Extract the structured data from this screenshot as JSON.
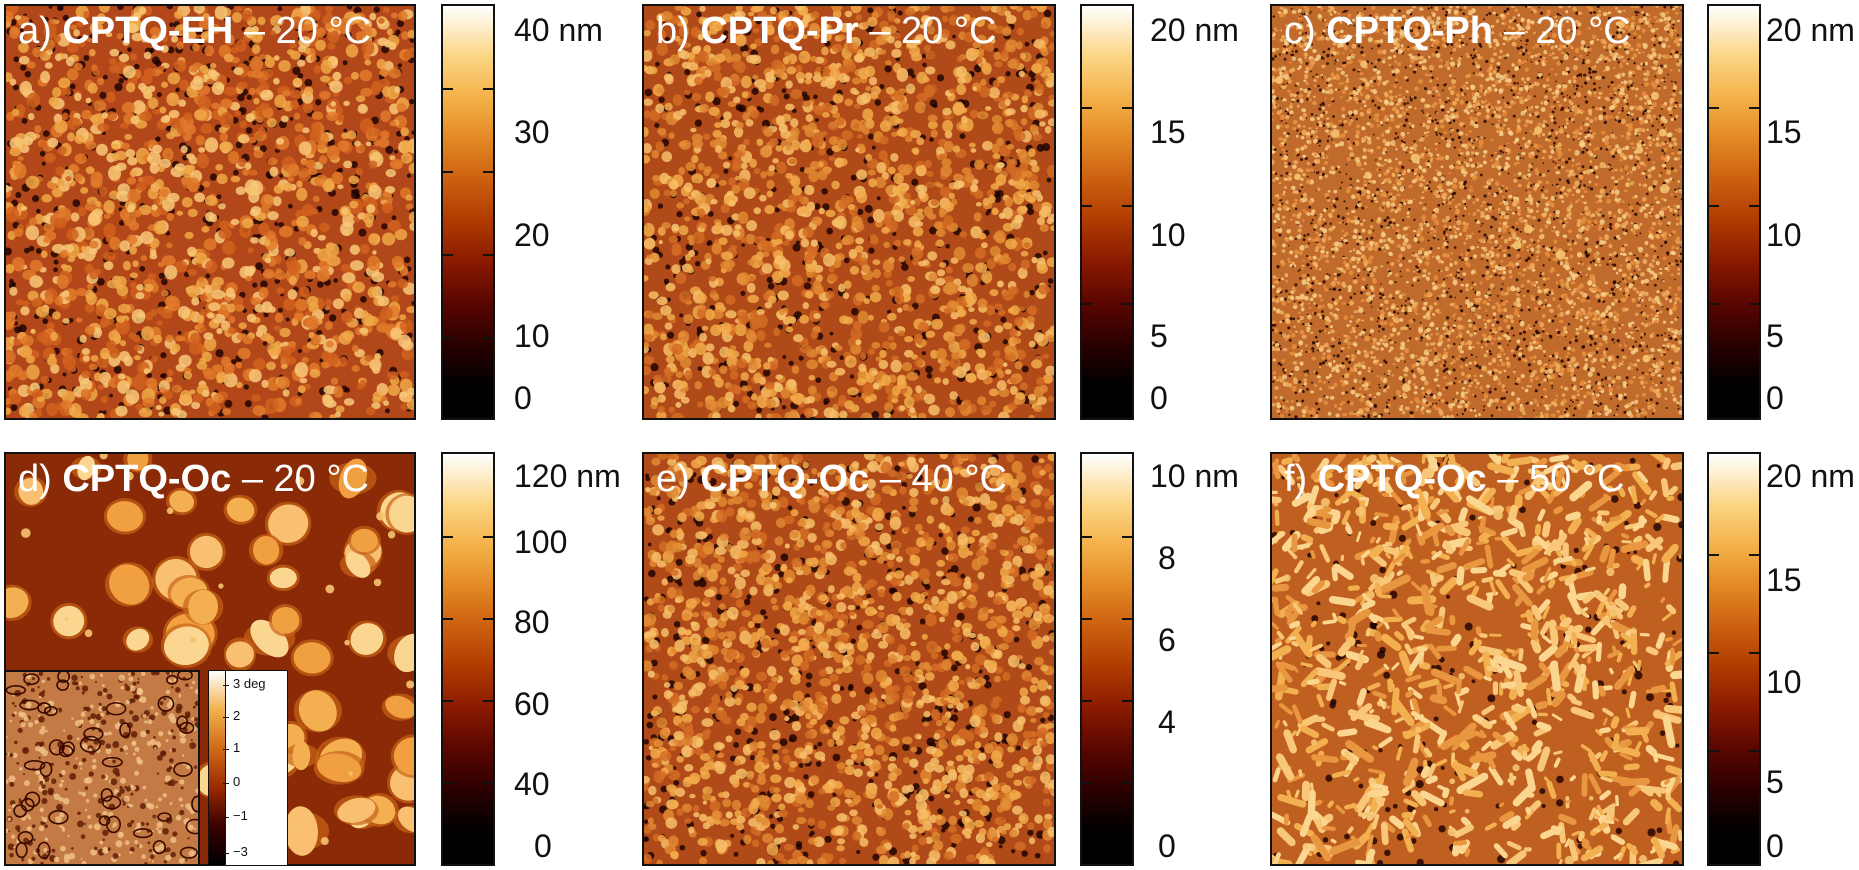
{
  "panels": [
    {
      "id": "a",
      "label": "a)",
      "compound": "CPTQ-EH",
      "temp": "– 20 °C",
      "texture": "fine-blobs",
      "colorbar": {
        "labels": [
          "40 nm",
          "30",
          "20",
          "10",
          "0"
        ]
      }
    },
    {
      "id": "b",
      "label": "b)",
      "compound": "CPTQ-Pr",
      "temp": "– 20 °C",
      "texture": "grains",
      "colorbar": {
        "labels": [
          "20 nm",
          "15",
          "10",
          "5",
          "0"
        ]
      }
    },
    {
      "id": "c",
      "label": "c)",
      "compound": "CPTQ-Ph",
      "temp": "– 20 °C",
      "texture": "very-fine",
      "colorbar": {
        "labels": [
          "20 nm",
          "15",
          "10",
          "5",
          "0"
        ]
      }
    },
    {
      "id": "d",
      "label": "d)",
      "compound": "CPTQ-Oc",
      "temp": "– 20 °C",
      "texture": "large-crystals",
      "colorbar": {
        "labels": [
          "120 nm",
          "100",
          "80",
          "60",
          "40",
          "0"
        ]
      }
    },
    {
      "id": "e",
      "label": "e)",
      "compound": "CPTQ-Oc",
      "temp": "– 40 °C",
      "texture": "grains",
      "colorbar": {
        "labels": [
          "10 nm",
          "8",
          "6",
          "4",
          "0"
        ]
      }
    },
    {
      "id": "f",
      "label": "f)",
      "compound": "CPTQ-Oc",
      "temp": "– 50 °C",
      "texture": "rods",
      "colorbar": {
        "labels": [
          "20 nm",
          "15",
          "10",
          "5",
          "0"
        ]
      }
    }
  ],
  "inset": {
    "colorbar_labels": [
      "3 deg",
      "2",
      "1",
      "0",
      "−1",
      "−3"
    ]
  },
  "colors": {
    "dark": "#1a0000",
    "mid": "#c0561c",
    "light": "#f6c470",
    "white": "#ffffff"
  }
}
